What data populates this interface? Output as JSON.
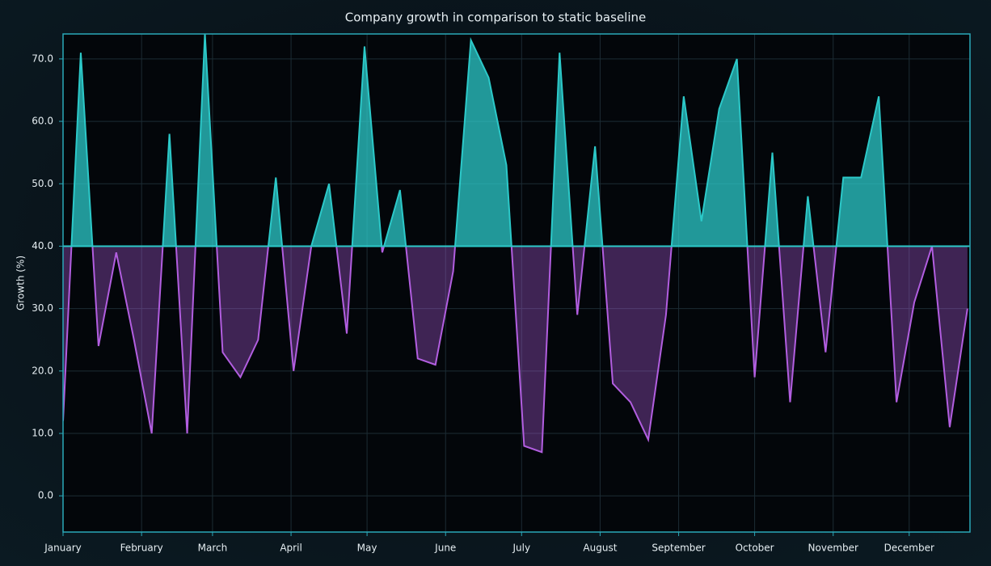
{
  "chart_data": {
    "type": "area",
    "title": "Company growth in comparison to static baseline",
    "y_label": "Growth (%)",
    "baseline": 40,
    "above_color": "#2cc9c9",
    "below_color": "#b25ee0",
    "grid": true,
    "x": [
      0,
      7,
      14,
      21,
      28,
      35,
      42,
      49,
      56,
      63,
      70,
      77,
      84,
      91,
      98,
      105,
      112,
      119,
      126,
      133,
      140,
      147,
      154,
      161,
      168,
      175,
      182,
      189,
      196,
      203,
      210,
      217,
      224,
      231,
      238,
      245,
      252,
      259,
      266,
      273,
      280,
      287,
      294,
      301,
      308,
      315,
      322,
      329,
      336,
      343,
      350,
      357
    ],
    "values": [
      12,
      71,
      24,
      39,
      25,
      10,
      58,
      10,
      74,
      23,
      19,
      25,
      51,
      20,
      40,
      50,
      26,
      72,
      39,
      49,
      22,
      21,
      36,
      73,
      67,
      53,
      8,
      7,
      71,
      29,
      56,
      18,
      15,
      9,
      29,
      64,
      44,
      62,
      70,
      19,
      55,
      15,
      48,
      23,
      51,
      51,
      64,
      15,
      31,
      40,
      11,
      30
    ],
    "xlim": [
      0,
      358
    ],
    "xticks": [
      {
        "value": 0,
        "label": "January"
      },
      {
        "value": 31,
        "label": "February"
      },
      {
        "value": 59,
        "label": "March"
      },
      {
        "value": 90,
        "label": "April"
      },
      {
        "value": 120,
        "label": "May"
      },
      {
        "value": 151,
        "label": "June"
      },
      {
        "value": 181,
        "label": "July"
      },
      {
        "value": 212,
        "label": "August"
      },
      {
        "value": 243,
        "label": "September"
      },
      {
        "value": 273,
        "label": "October"
      },
      {
        "value": 304,
        "label": "November"
      },
      {
        "value": 334,
        "label": "December"
      }
    ],
    "ylim": [
      -5.8,
      74
    ],
    "yticks": [
      {
        "value": 0,
        "label": "0.0"
      },
      {
        "value": 10,
        "label": "10.0"
      },
      {
        "value": 20,
        "label": "20.0"
      },
      {
        "value": 30,
        "label": "30.0"
      },
      {
        "value": 40,
        "label": "40.0"
      },
      {
        "value": 50,
        "label": "50.0"
      },
      {
        "value": 60,
        "label": "60.0"
      },
      {
        "value": 70,
        "label": "70.0"
      }
    ]
  }
}
